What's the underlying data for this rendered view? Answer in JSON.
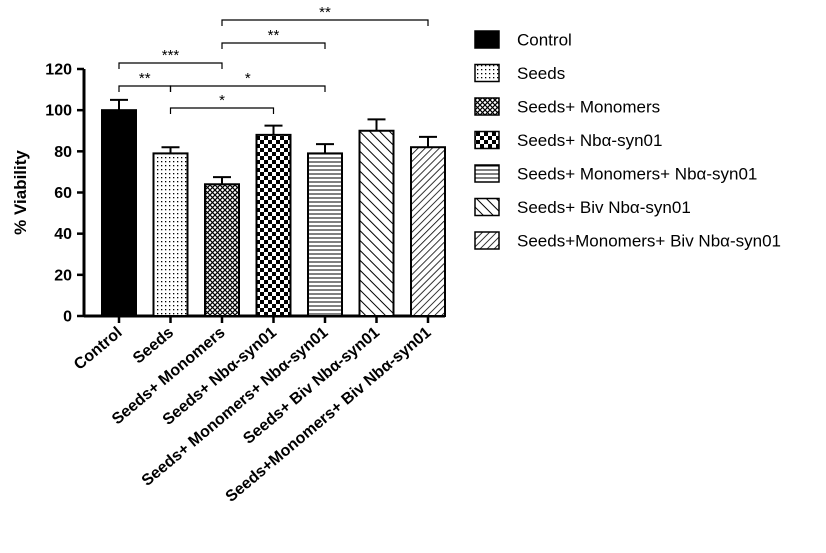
{
  "chart_data": {
    "type": "bar",
    "ylabel": "% Viability",
    "xlabel": "",
    "ylim": [
      0,
      120
    ],
    "yticks": [
      0,
      20,
      40,
      60,
      80,
      100,
      120
    ],
    "grid": false,
    "legend_position": "right",
    "categories": [
      "Control",
      "Seeds",
      "Seeds+ Monomers",
      "Seeds+ Nbα-syn01",
      "Seeds+ Monomers+ Nbα-syn01",
      "Seeds+ Biv Nbα-syn01",
      "Seeds+Monomers+ Biv Nbα-syn01"
    ],
    "values": [
      100,
      79,
      64,
      88,
      79,
      90,
      82
    ],
    "errors": [
      5,
      3,
      3.5,
      4.5,
      4.5,
      5.5,
      5
    ],
    "patterns": [
      "solid",
      "dots",
      "crosshatch",
      "checker",
      "horizontal",
      "diag-sparse",
      "diag-dense"
    ],
    "significance": [
      {
        "from": 0,
        "to": 1,
        "label": "**"
      },
      {
        "from": 0,
        "to": 2,
        "label": "***"
      },
      {
        "from": 1,
        "to": 3,
        "label": "*"
      },
      {
        "from": 1,
        "to": 4,
        "label": "*"
      },
      {
        "from": 2,
        "to": 4,
        "label": "**"
      },
      {
        "from": 2,
        "to": 6,
        "label": "**"
      }
    ]
  }
}
